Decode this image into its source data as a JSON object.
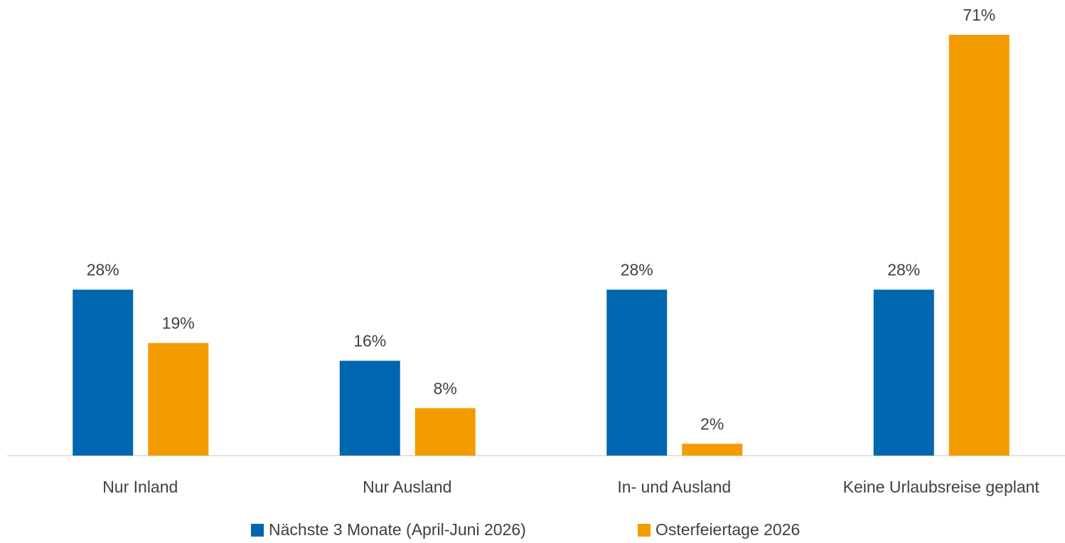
{
  "chart_data": {
    "type": "bar",
    "categories": [
      "Nur Inland",
      "Nur Ausland",
      "In- und Ausland",
      "Keine Urlaubsreise geplant"
    ],
    "series": [
      {
        "name": "Nächste 3 Monate (April-Juni 2026)",
        "color": "#0066b0",
        "values": [
          28,
          16,
          28,
          28
        ],
        "value_labels": [
          "28%",
          "16%",
          "28%",
          "28%"
        ]
      },
      {
        "name": "Osterfeiertage 2026",
        "color": "#f39c00",
        "values": [
          19,
          8,
          2,
          71
        ],
        "value_labels": [
          "19%",
          "8%",
          "2%",
          "71%"
        ]
      }
    ],
    "legend": "bottom"
  }
}
